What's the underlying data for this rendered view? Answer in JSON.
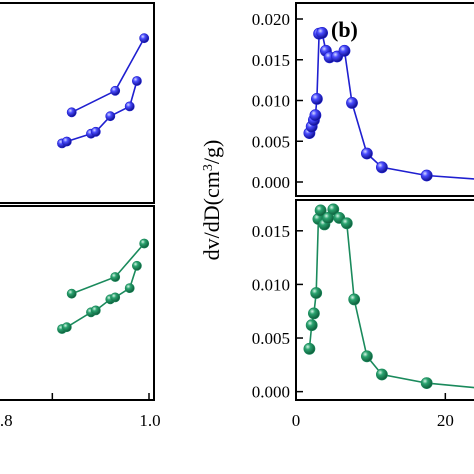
{
  "chart_data": [
    {
      "type": "line",
      "panel": "left-top",
      "color": "#1f1fd0",
      "xlim": [
        0.7,
        1.0
      ],
      "series": [
        {
          "x": [
            0.84,
            0.93,
            0.99
          ],
          "y": [
            0.45,
            0.56,
            0.83
          ]
        },
        {
          "x": [
            0.82,
            0.83,
            0.88,
            0.89,
            0.92,
            0.96,
            0.975
          ],
          "y": [
            0.29,
            0.3,
            0.34,
            0.35,
            0.43,
            0.48,
            0.61
          ]
        }
      ]
    },
    {
      "type": "line",
      "panel": "left-bottom",
      "color": "#1a8a5c",
      "xlim": [
        0.7,
        1.0
      ],
      "xticks": [
        "0.8",
        "1.0"
      ],
      "xtick_values": [
        0.8,
        1.0
      ],
      "series": [
        {
          "x": [
            0.84,
            0.93,
            0.99
          ],
          "y": [
            0.55,
            0.64,
            0.82
          ]
        },
        {
          "x": [
            0.82,
            0.83,
            0.88,
            0.89,
            0.92,
            0.93,
            0.96,
            0.975
          ],
          "y": [
            0.36,
            0.37,
            0.45,
            0.46,
            0.52,
            0.53,
            0.58,
            0.7
          ]
        }
      ]
    },
    {
      "type": "line",
      "panel": "right-top",
      "color": "#1f1fd0",
      "label": "(b)",
      "xlim": [
        0,
        30
      ],
      "ylim": [
        0,
        0.02
      ],
      "yticks": [
        "0.000",
        "0.005",
        "0.010",
        "0.015",
        "0.020"
      ],
      "ytick_values": [
        0,
        0.005,
        0.01,
        0.015,
        0.02
      ],
      "series": [
        {
          "x": [
            1.8,
            2.1,
            2.4,
            2.6,
            2.8,
            3.1,
            3.5,
            4.0,
            4.5,
            5.5,
            6.5,
            7.5,
            9.5,
            11.5,
            17.5,
            25.0
          ],
          "y": [
            0.006,
            0.0068,
            0.0076,
            0.0082,
            0.0102,
            0.0182,
            0.0183,
            0.0161,
            0.0153,
            0.0154,
            0.0161,
            0.0097,
            0.0035,
            0.0018,
            0.0008,
            0.0003
          ]
        }
      ]
    },
    {
      "type": "line",
      "panel": "right-bottom",
      "color": "#1a8a5c",
      "xlim": [
        0,
        30
      ],
      "ylim": [
        -0.0005,
        0.0175
      ],
      "yticks": [
        "0.000",
        "0.005",
        "0.010",
        "0.015"
      ],
      "ytick_values": [
        0,
        0.005,
        0.01,
        0.015
      ],
      "xticks": [
        "0",
        "20"
      ],
      "xtick_values": [
        0,
        20
      ],
      "series": [
        {
          "x": [
            1.8,
            2.1,
            2.4,
            2.7,
            3.0,
            3.3,
            3.8,
            4.3,
            5.0,
            5.8,
            6.8,
            7.8,
            9.5,
            11.5,
            17.5,
            25.0
          ],
          "y": [
            0.004,
            0.0062,
            0.0073,
            0.0092,
            0.0161,
            0.0169,
            0.0156,
            0.0162,
            0.017,
            0.0162,
            0.0157,
            0.0086,
            0.0033,
            0.0016,
            0.0008,
            0.0003
          ]
        }
      ]
    }
  ],
  "ylabel_right": {
    "prefix": "dv/dD(cm",
    "sup": "3",
    "suffix": "/g)"
  }
}
